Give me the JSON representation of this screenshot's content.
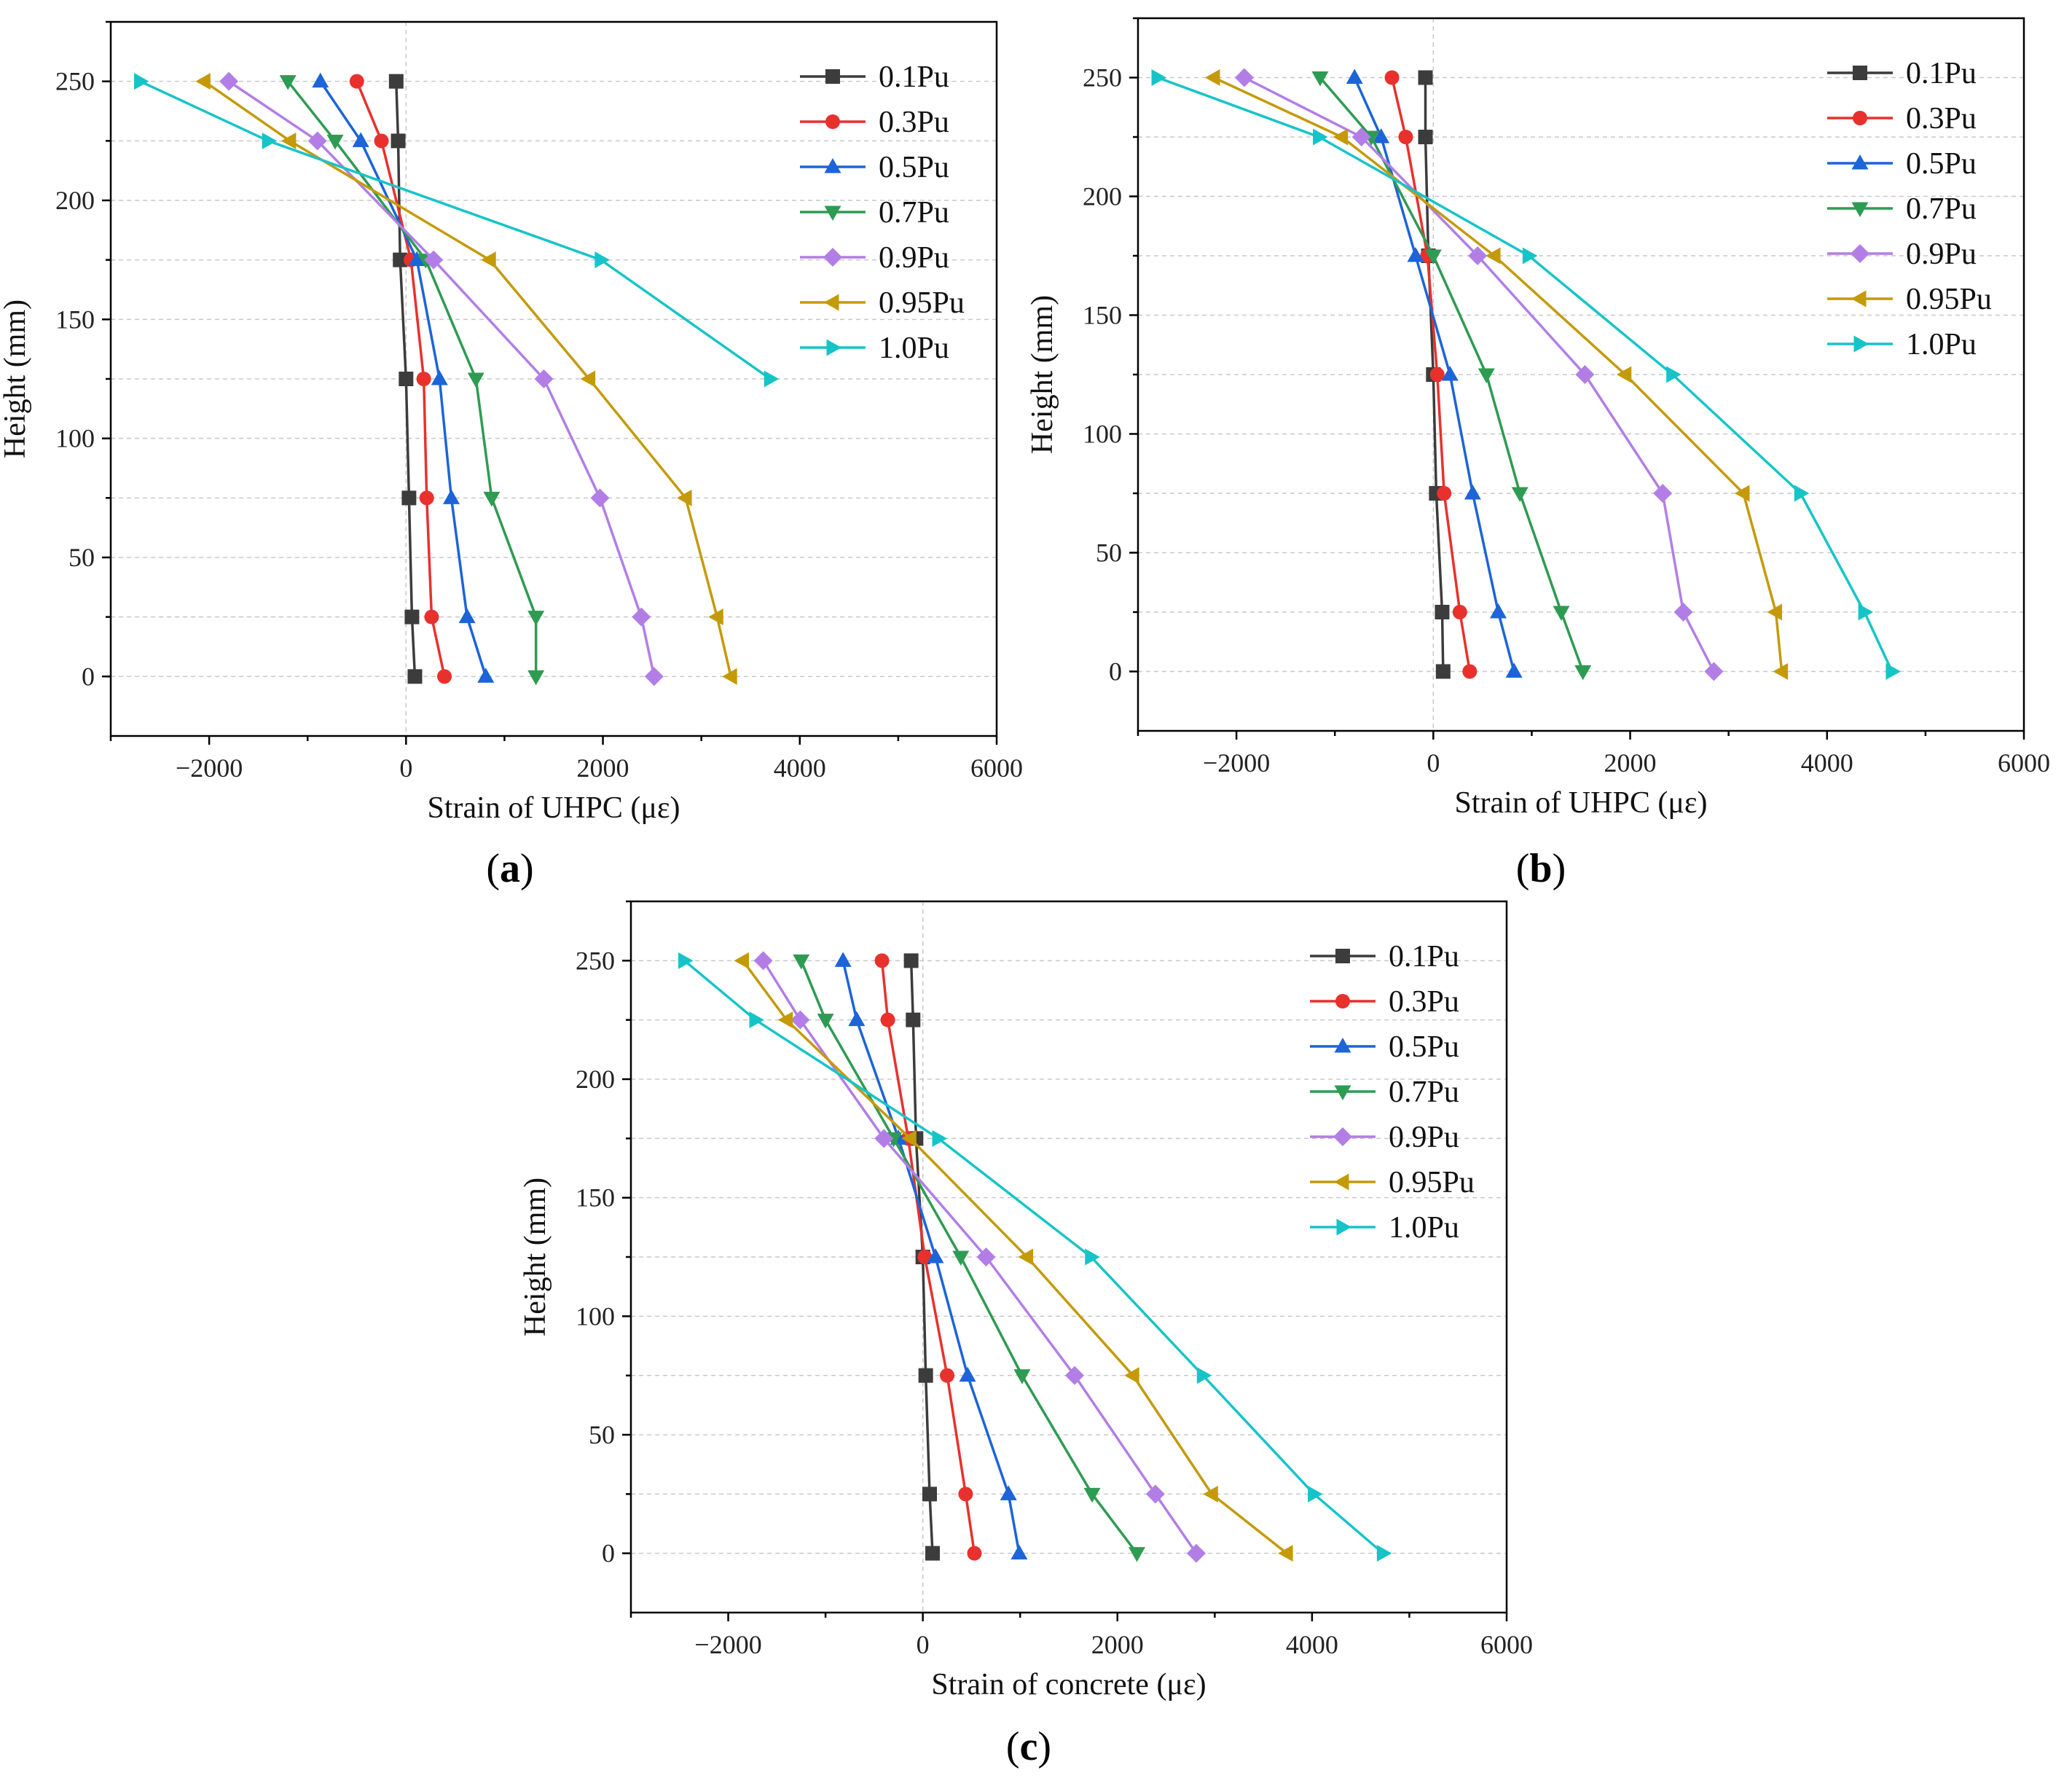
{
  "figure": {
    "panels": [
      {
        "id": "a",
        "label": "a"
      },
      {
        "id": "b",
        "label": "b"
      },
      {
        "id": "c",
        "label": "c"
      }
    ]
  },
  "colors": {
    "0.1Pu": "#3c3c3c",
    "0.3Pu": "#e8312d",
    "0.5Pu": "#1c64d8",
    "0.7Pu": "#2e9b52",
    "0.9Pu": "#b27ee6",
    "0.95Pu": "#c49a08",
    "1.0Pu": "#16c4c8"
  },
  "chart_data": [
    {
      "type": "line",
      "panel": "a",
      "title": "",
      "xlabel": "Strain of UHPC (με)",
      "ylabel": "Height (mm)",
      "xlim": [
        -3000,
        6000
      ],
      "ylim": [
        -25,
        275
      ],
      "xticks": [
        -2000,
        0,
        2000,
        4000,
        6000
      ],
      "yticks": [
        0,
        50,
        100,
        150,
        200,
        250
      ],
      "legend_position": "top-right",
      "heights": [
        250,
        225,
        175,
        125,
        75,
        25,
        0
      ],
      "series": [
        {
          "name": "0.1Pu",
          "marker": "square",
          "strain": [
            -100,
            -80,
            -60,
            0,
            30,
            60,
            90
          ]
        },
        {
          "name": "0.3Pu",
          "marker": "circle",
          "strain": [
            -500,
            -250,
            50,
            180,
            210,
            260,
            390
          ]
        },
        {
          "name": "0.5Pu",
          "marker": "triangle-up",
          "strain": [
            -870,
            -460,
            110,
            340,
            460,
            620,
            810
          ]
        },
        {
          "name": "0.7Pu",
          "marker": "triangle-down",
          "strain": [
            -1200,
            -720,
            200,
            710,
            870,
            1320,
            1320
          ]
        },
        {
          "name": "0.9Pu",
          "marker": "diamond",
          "strain": [
            -1800,
            -900,
            280,
            1400,
            1970,
            2390,
            2520
          ]
        },
        {
          "name": "0.95Pu",
          "marker": "triangle-left",
          "strain": [
            -2050,
            -1180,
            850,
            1860,
            2840,
            3160,
            3300
          ]
        },
        {
          "name": "1.0Pu",
          "marker": "triangle-right",
          "strain": [
            -2700,
            -1400,
            1980,
            3700,
            null,
            null,
            null
          ]
        }
      ]
    },
    {
      "type": "line",
      "panel": "b",
      "title": "",
      "xlabel": "Strain of UHPC (με)",
      "ylabel": "Height (mm)",
      "xlim": [
        -3000,
        6000
      ],
      "ylim": [
        -25,
        275
      ],
      "xticks": [
        -2000,
        0,
        2000,
        4000,
        6000
      ],
      "yticks": [
        0,
        50,
        100,
        150,
        200,
        250
      ],
      "legend_position": "top-right",
      "heights": [
        250,
        225,
        175,
        125,
        75,
        25,
        0
      ],
      "series": [
        {
          "name": "0.1Pu",
          "marker": "square",
          "strain": [
            -80,
            -80,
            -50,
            0,
            30,
            90,
            100
          ]
        },
        {
          "name": "0.3Pu",
          "marker": "circle",
          "strain": [
            -420,
            -280,
            -60,
            40,
            110,
            270,
            370
          ]
        },
        {
          "name": "0.5Pu",
          "marker": "triangle-up",
          "strain": [
            -800,
            -530,
            -180,
            170,
            400,
            660,
            820
          ]
        },
        {
          "name": "0.7Pu",
          "marker": "triangle-down",
          "strain": [
            -1150,
            -630,
            0,
            540,
            880,
            1300,
            1520
          ]
        },
        {
          "name": "0.9Pu",
          "marker": "diamond",
          "strain": [
            -1920,
            -730,
            450,
            1540,
            2330,
            2540,
            2850
          ]
        },
        {
          "name": "0.95Pu",
          "marker": "triangle-left",
          "strain": [
            -2230,
            -930,
            620,
            1950,
            3150,
            3480,
            3540
          ]
        },
        {
          "name": "1.0Pu",
          "marker": "triangle-right",
          "strain": [
            -2800,
            -1160,
            970,
            2430,
            3730,
            4380,
            4660
          ]
        }
      ]
    },
    {
      "type": "line",
      "panel": "c",
      "title": "",
      "xlabel": "Strain of concrete (με)",
      "ylabel": "Height (mm)",
      "xlim": [
        -3000,
        6000
      ],
      "ylim": [
        -25,
        275
      ],
      "xticks": [
        -2000,
        0,
        2000,
        4000,
        6000
      ],
      "yticks": [
        0,
        50,
        100,
        150,
        200,
        250
      ],
      "legend_position": "top-right",
      "heights": [
        250,
        225,
        175,
        125,
        75,
        25,
        0
      ],
      "series": [
        {
          "name": "0.1Pu",
          "marker": "square",
          "strain": [
            -120,
            -100,
            -70,
            0,
            30,
            70,
            100
          ]
        },
        {
          "name": "0.3Pu",
          "marker": "circle",
          "strain": [
            -420,
            -360,
            -150,
            20,
            250,
            440,
            530
          ]
        },
        {
          "name": "0.5Pu",
          "marker": "triangle-up",
          "strain": [
            -820,
            -680,
            -250,
            130,
            460,
            880,
            990
          ]
        },
        {
          "name": "0.7Pu",
          "marker": "triangle-down",
          "strain": [
            -1250,
            -1000,
            -300,
            390,
            1020,
            1740,
            2200
          ]
        },
        {
          "name": "0.9Pu",
          "marker": "diamond",
          "strain": [
            -1640,
            -1260,
            -400,
            650,
            1560,
            2390,
            2810
          ]
        },
        {
          "name": "0.95Pu",
          "marker": "triangle-left",
          "strain": [
            -1850,
            -1400,
            -130,
            1070,
            2160,
            2970,
            3740
          ]
        },
        {
          "name": "1.0Pu",
          "marker": "triangle-right",
          "strain": [
            -2450,
            -1720,
            160,
            1730,
            2880,
            4020,
            4730
          ]
        }
      ]
    }
  ]
}
